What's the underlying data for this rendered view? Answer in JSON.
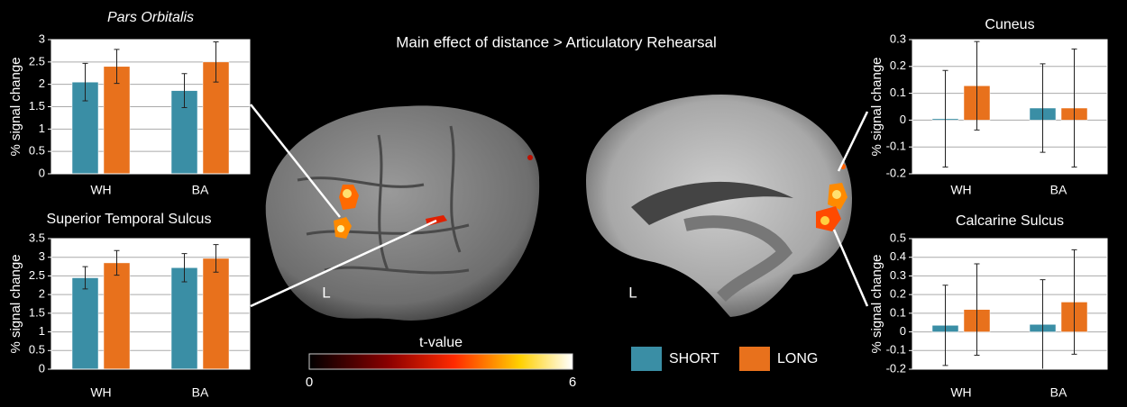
{
  "title": "Main effect of distance > Articulatory Rehearsal",
  "hemisphere_labels": [
    "L",
    "L"
  ],
  "colorbar": {
    "label": "t-value",
    "lim": [
      0,
      6
    ],
    "ticks": [
      0,
      6
    ]
  },
  "chart_data": [
    {
      "type": "bar",
      "title": "Pars Orbitalis",
      "title_italic": true,
      "ylabel": "% signal change",
      "categories": [
        "WH",
        "BA"
      ],
      "series": [
        {
          "name": "SHORT",
          "color": "#3a8ea5",
          "values": [
            2.05,
            1.86
          ],
          "errors": [
            0.42,
            0.38
          ]
        },
        {
          "name": "LONG",
          "color": "#e8711c",
          "values": [
            2.4,
            2.5
          ],
          "errors": [
            0.38,
            0.45
          ]
        }
      ],
      "ylim": [
        0,
        3
      ],
      "yticks": [
        0,
        0.5,
        1,
        1.5,
        2,
        2.5,
        3
      ],
      "grid": true
    },
    {
      "type": "bar",
      "title": "Superior Temporal Sulcus",
      "ylabel": "% signal change",
      "categories": [
        "WH",
        "BA"
      ],
      "series": [
        {
          "color": "#3a8ea5",
          "values": [
            2.45,
            2.72
          ],
          "errors": [
            0.3,
            0.38
          ]
        },
        {
          "color": "#e8711c",
          "values": [
            2.85,
            2.97
          ],
          "errors": [
            0.33,
            0.37
          ]
        }
      ],
      "ylim": [
        0,
        3.5
      ],
      "yticks": [
        0,
        0.5,
        1,
        1.5,
        2,
        2.5,
        3,
        3.5
      ],
      "grid": true
    },
    {
      "type": "bar",
      "title": "Cuneus",
      "ylabel": "% signal change",
      "categories": [
        "WH",
        "BA"
      ],
      "series": [
        {
          "color": "#3a8ea5",
          "values": [
            0.005,
            0.045
          ],
          "errors": [
            0.18,
            0.165
          ]
        },
        {
          "color": "#e8711c",
          "values": [
            0.128,
            0.045
          ],
          "errors": [
            0.165,
            0.22
          ]
        }
      ],
      "ylim": [
        -0.2,
        0.3
      ],
      "yticks": [
        -0.2,
        -0.1,
        0,
        0.1,
        0.2,
        0.3
      ],
      "grid": true
    },
    {
      "type": "bar",
      "title": "Calcarine Sulcus",
      "ylabel": "% signal change",
      "categories": [
        "WH",
        "BA"
      ],
      "series": [
        {
          "color": "#3a8ea5",
          "values": [
            0.035,
            0.04
          ],
          "errors": [
            0.215,
            0.24
          ]
        },
        {
          "color": "#e8711c",
          "values": [
            0.12,
            0.16
          ],
          "errors": [
            0.245,
            0.28
          ]
        }
      ],
      "ylim": [
        -0.2,
        0.5
      ],
      "yticks": [
        -0.2,
        -0.1,
        0,
        0.1,
        0.2,
        0.3,
        0.4,
        0.5
      ],
      "grid": true
    }
  ]
}
